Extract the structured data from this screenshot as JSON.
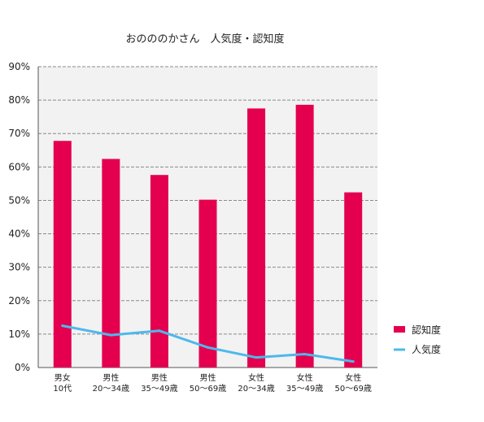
{
  "chart_data": {
    "type": "bar",
    "title": "おのののかさん　人気度・認知度",
    "categories": [
      [
        "男女",
        "10代"
      ],
      [
        "男性",
        "20〜34歳"
      ],
      [
        "男性",
        "35〜49歳"
      ],
      [
        "男性",
        "50〜69歳"
      ],
      [
        "女性",
        "20〜34歳"
      ],
      [
        "女性",
        "35〜49歳"
      ],
      [
        "女性",
        "50〜69歳"
      ]
    ],
    "ylim": [
      0,
      90
    ],
    "yticks": [
      0,
      10,
      20,
      30,
      40,
      50,
      60,
      70,
      80,
      90
    ],
    "ytick_suffix": "%",
    "grid": true,
    "legend_position": "right",
    "series": [
      {
        "name": "認知度",
        "type": "bar",
        "color": "#e4004f",
        "values": [
          67.8,
          62.4,
          57.6,
          50.2,
          77.5,
          78.6,
          52.4
        ]
      },
      {
        "name": "人気度",
        "type": "line",
        "color": "#4db8ec",
        "values": [
          12.5,
          9.7,
          11.0,
          6.0,
          3.0,
          4.0,
          1.8
        ]
      }
    ]
  }
}
